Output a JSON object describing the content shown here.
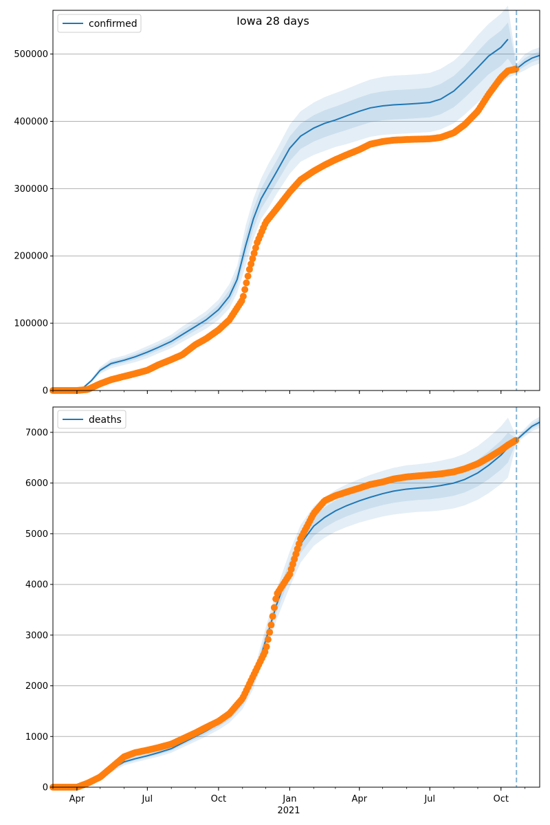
{
  "figure_title": "Iowa 28 days",
  "colors": {
    "model": "#1f77b4",
    "observed": "#ff7f0e",
    "band": "#1f77b4",
    "grid": "#b0b0b0",
    "today_line": "#1f77b4"
  },
  "x_axis": {
    "month_ticks": [
      {
        "label": "Apr",
        "date": "2020-04-01"
      },
      {
        "label": "Jul",
        "date": "2020-07-01"
      },
      {
        "label": "Oct",
        "date": "2020-10-01"
      },
      {
        "label": "Jan",
        "date": "2021-01-01"
      },
      {
        "label": "Apr",
        "date": "2021-04-01"
      },
      {
        "label": "Jul",
        "date": "2021-07-01"
      },
      {
        "label": "Oct",
        "date": "2021-10-01"
      }
    ],
    "year_label": "2021",
    "range": [
      "2020-03-01",
      "2021-11-20"
    ]
  },
  "chart_data": [
    {
      "type": "line",
      "legend": "confirmed",
      "legend_position": "top-left",
      "title": "Iowa 28 days",
      "grid": "horizontal",
      "ylim": [
        0,
        565000
      ],
      "yticks": [
        "0",
        "100000",
        "200000",
        "300000",
        "400000",
        "500000"
      ],
      "forecast_start": "2021-10-21",
      "model": {
        "x": [
          "2020-03-01",
          "2020-03-15",
          "2020-03-30",
          "2020-04-10",
          "2020-04-20",
          "2020-05-01",
          "2020-05-15",
          "2020-06-01",
          "2020-06-15",
          "2020-07-01",
          "2020-07-15",
          "2020-08-01",
          "2020-08-15",
          "2020-09-01",
          "2020-09-15",
          "2020-10-01",
          "2020-10-15",
          "2020-10-25",
          "2020-11-05",
          "2020-11-15",
          "2020-11-25",
          "2020-12-05",
          "2020-12-15",
          "2021-01-01",
          "2021-01-15",
          "2021-02-01",
          "2021-02-15",
          "2021-03-01",
          "2021-03-15",
          "2021-04-01",
          "2021-04-15",
          "2021-05-01",
          "2021-05-15",
          "2021-06-01",
          "2021-06-15",
          "2021-07-01",
          "2021-07-15",
          "2021-08-01",
          "2021-08-15",
          "2021-09-01",
          "2021-09-15",
          "2021-10-01",
          "2021-10-10",
          "2021-10-21",
          "2021-11-01",
          "2021-11-10",
          "2021-11-20"
        ],
        "y": [
          0,
          0,
          500,
          5000,
          15000,
          30000,
          40000,
          45000,
          50000,
          57000,
          64000,
          73000,
          83000,
          95000,
          105000,
          120000,
          140000,
          165000,
          215000,
          255000,
          285000,
          305000,
          325000,
          360000,
          378000,
          390000,
          397000,
          402000,
          408000,
          415000,
          420000,
          423000,
          424500,
          425500,
          426500,
          428000,
          433000,
          445000,
          460000,
          480000,
          497000,
          510000,
          522000,
          478000,
          488000,
          494000,
          498000
        ],
        "bands": [
          {
            "lower": [
              0,
              0,
              0,
              3500,
              12000,
              25000,
              33000,
              38000,
              42000,
              48000,
              55000,
              63000,
              72000,
              83000,
              92000,
              105000,
              122000,
              145000,
              185000,
              225000,
              255000,
              272000,
              292000,
              322000,
              340000,
              350000,
              356000,
              362000,
              366000,
              372000,
              377000,
              380000,
              381000,
              382000,
              383000,
              384000,
              388000,
              397000,
              410000,
              428000,
              443000,
              455000,
              465000,
              470000,
              476000,
              482000,
              486000
            ],
            "upper": [
              0,
              0,
              1000,
              6500,
              18000,
              35000,
              47000,
              52000,
              58000,
              66000,
              73000,
              83000,
              95000,
              107000,
              118000,
              135000,
              158000,
              185000,
              245000,
              285000,
              315000,
              338000,
              358000,
              395000,
              415000,
              428000,
              436000,
              442000,
              448000,
              456000,
              462000,
              466000,
              468000,
              469000,
              470000,
              472000,
              478000,
              490000,
              505000,
              528000,
              545000,
              560000,
              572000,
              486000,
              500000,
              506000,
              510000
            ]
          },
          {
            "lower": [
              0,
              0,
              250,
              4300,
              13500,
              27500,
              36500,
              41500,
              46000,
              52500,
              59500,
              68000,
              77500,
              89000,
              98500,
              112500,
              131000,
              155000,
              200000,
              240000,
              270000,
              288500,
              308500,
              341000,
              359000,
              370000,
              376500,
              382000,
              387000,
              393500,
              398500,
              401500,
              402750,
              403750,
              404750,
              406000,
              410500,
              421000,
              435000,
              454000,
              470000,
              482500,
              493500,
              474000,
              482000,
              488000,
              492000
            ],
            "upper": [
              0,
              0,
              750,
              5700,
              16500,
              32500,
              43500,
              48500,
              54000,
              61500,
              68500,
              78000,
              89000,
              101000,
              111500,
              127500,
              149000,
              175000,
              230000,
              270000,
              300000,
              321500,
              341500,
              377500,
              396500,
              409000,
              416500,
              422000,
              428000,
              435500,
              441000,
              444500,
              446250,
              447250,
              448250,
              450000,
              455500,
              467500,
              482500,
              504000,
              521000,
              535000,
              547000,
              482000,
              494000,
              500000,
              504000
            ]
          }
        ]
      },
      "observed": {
        "x": [
          "2020-03-01",
          "2020-04-01",
          "2020-04-15",
          "2020-05-01",
          "2020-05-15",
          "2020-06-01",
          "2020-06-15",
          "2020-07-01",
          "2020-07-15",
          "2020-08-01",
          "2020-08-15",
          "2020-09-01",
          "2020-09-15",
          "2020-10-01",
          "2020-10-15",
          "2020-11-01",
          "2020-11-10",
          "2020-11-20",
          "2020-12-01",
          "2020-12-15",
          "2021-01-01",
          "2021-01-15",
          "2021-02-01",
          "2021-02-15",
          "2021-03-01",
          "2021-03-15",
          "2021-04-01",
          "2021-04-15",
          "2021-05-01",
          "2021-05-15",
          "2021-06-01",
          "2021-06-15",
          "2021-07-01",
          "2021-07-15",
          "2021-08-01",
          "2021-08-15",
          "2021-09-01",
          "2021-09-15",
          "2021-10-01",
          "2021-10-10",
          "2021-10-21"
        ],
        "y": [
          0,
          0,
          1500,
          10000,
          16000,
          21000,
          25000,
          30000,
          38000,
          46000,
          53000,
          68000,
          77000,
          90000,
          105000,
          135000,
          180000,
          220000,
          250000,
          270000,
          295000,
          313000,
          326000,
          335000,
          343000,
          350000,
          358000,
          366000,
          370000,
          372000,
          373000,
          373500,
          374000,
          376000,
          383000,
          395000,
          415000,
          440000,
          465000,
          475000,
          478000
        ]
      }
    },
    {
      "type": "line",
      "legend": "deaths",
      "legend_position": "top-left",
      "grid": "horizontal",
      "ylim": [
        0,
        7500
      ],
      "yticks": [
        "0",
        "1000",
        "2000",
        "3000",
        "4000",
        "5000",
        "6000",
        "7000"
      ],
      "forecast_start": "2021-10-21",
      "model": {
        "x": [
          "2020-03-01",
          "2020-04-01",
          "2020-04-15",
          "2020-05-01",
          "2020-05-15",
          "2020-06-01",
          "2020-06-15",
          "2020-07-01",
          "2020-07-15",
          "2020-08-01",
          "2020-08-15",
          "2020-09-01",
          "2020-09-15",
          "2020-10-01",
          "2020-10-15",
          "2020-11-01",
          "2020-11-15",
          "2020-12-01",
          "2020-12-15",
          "2021-01-01",
          "2021-01-15",
          "2021-02-01",
          "2021-02-15",
          "2021-03-01",
          "2021-03-15",
          "2021-04-01",
          "2021-04-15",
          "2021-05-01",
          "2021-05-15",
          "2021-06-01",
          "2021-06-15",
          "2021-07-01",
          "2021-07-15",
          "2021-08-01",
          "2021-08-15",
          "2021-09-01",
          "2021-09-15",
          "2021-10-01",
          "2021-10-10",
          "2021-10-21",
          "2021-11-01",
          "2021-11-10",
          "2021-11-20"
        ],
        "y": [
          0,
          0,
          60,
          180,
          350,
          500,
          560,
          620,
          680,
          760,
          870,
          1000,
          1110,
          1250,
          1400,
          1680,
          2100,
          2900,
          3600,
          4300,
          4800,
          5150,
          5320,
          5450,
          5550,
          5650,
          5720,
          5790,
          5840,
          5880,
          5900,
          5920,
          5950,
          6000,
          6070,
          6200,
          6350,
          6550,
          6700,
          6850,
          7000,
          7120,
          7200
        ],
        "bands": [
          {
            "lower": [
              0,
              0,
              40,
              140,
              290,
              430,
              490,
              550,
              600,
              680,
              780,
              900,
              1000,
              1130,
              1270,
              1540,
              1940,
              2650,
              3300,
              3950,
              4430,
              4760,
              4920,
              5040,
              5130,
              5220,
              5280,
              5340,
              5380,
              5410,
              5430,
              5440,
              5460,
              5500,
              5560,
              5670,
              5800,
              5980,
              6110,
              6790,
              6920,
              7020,
              7090
            ],
            "upper": [
              0,
              0,
              80,
              220,
              410,
              570,
              630,
              690,
              760,
              840,
              960,
              1100,
              1220,
              1370,
              1530,
              1820,
              2260,
              3150,
              3900,
              4650,
              5170,
              5540,
              5720,
              5860,
              5970,
              6080,
              6160,
              6240,
              6300,
              6350,
              6370,
              6400,
              6440,
              6500,
              6580,
              6730,
              6900,
              7120,
              7290,
              6910,
              7080,
              7220,
              7310
            ]
          },
          {
            "lower": [
              0,
              0,
              50,
              160,
              320,
              465,
              525,
              585,
              640,
              720,
              825,
              950,
              1055,
              1190,
              1335,
              1610,
              2020,
              2775,
              3450,
              4125,
              4615,
              4955,
              5120,
              5245,
              5340,
              5435,
              5500,
              5565,
              5610,
              5645,
              5665,
              5680,
              5705,
              5750,
              5815,
              5935,
              6075,
              6265,
              6405,
              6820,
              6960,
              7070,
              7145
            ],
            "upper": [
              0,
              0,
              70,
              200,
              380,
              535,
              595,
              655,
              720,
              800,
              915,
              1050,
              1165,
              1310,
              1465,
              1750,
              2180,
              3025,
              3750,
              4475,
              4985,
              5345,
              5520,
              5655,
              5760,
              5865,
              5940,
              6015,
              6070,
              6115,
              6135,
              6160,
              6195,
              6250,
              6325,
              6465,
              6625,
              6835,
              6995,
              6880,
              7040,
              7170,
              7255
            ]
          }
        ]
      },
      "observed": {
        "x": [
          "2020-03-01",
          "2020-04-01",
          "2020-04-15",
          "2020-05-01",
          "2020-05-15",
          "2020-06-01",
          "2020-06-15",
          "2020-07-01",
          "2020-07-15",
          "2020-08-01",
          "2020-08-15",
          "2020-09-01",
          "2020-09-15",
          "2020-10-01",
          "2020-10-15",
          "2020-11-01",
          "2020-11-15",
          "2020-12-01",
          "2020-12-08",
          "2020-12-15",
          "2021-01-01",
          "2021-01-15",
          "2021-02-01",
          "2021-02-15",
          "2021-03-01",
          "2021-03-15",
          "2021-04-01",
          "2021-04-15",
          "2021-05-01",
          "2021-05-15",
          "2021-06-01",
          "2021-06-15",
          "2021-07-01",
          "2021-07-15",
          "2021-08-01",
          "2021-08-15",
          "2021-09-01",
          "2021-09-15",
          "2021-10-01",
          "2021-10-10",
          "2021-10-21"
        ],
        "y": [
          0,
          0,
          80,
          200,
          380,
          600,
          680,
          730,
          780,
          850,
          950,
          1070,
          1180,
          1300,
          1450,
          1750,
          2200,
          2700,
          3200,
          3800,
          4200,
          4900,
          5400,
          5650,
          5750,
          5820,
          5900,
          5970,
          6020,
          6080,
          6120,
          6140,
          6160,
          6180,
          6220,
          6280,
          6380,
          6500,
          6650,
          6750,
          6850
        ]
      }
    }
  ]
}
